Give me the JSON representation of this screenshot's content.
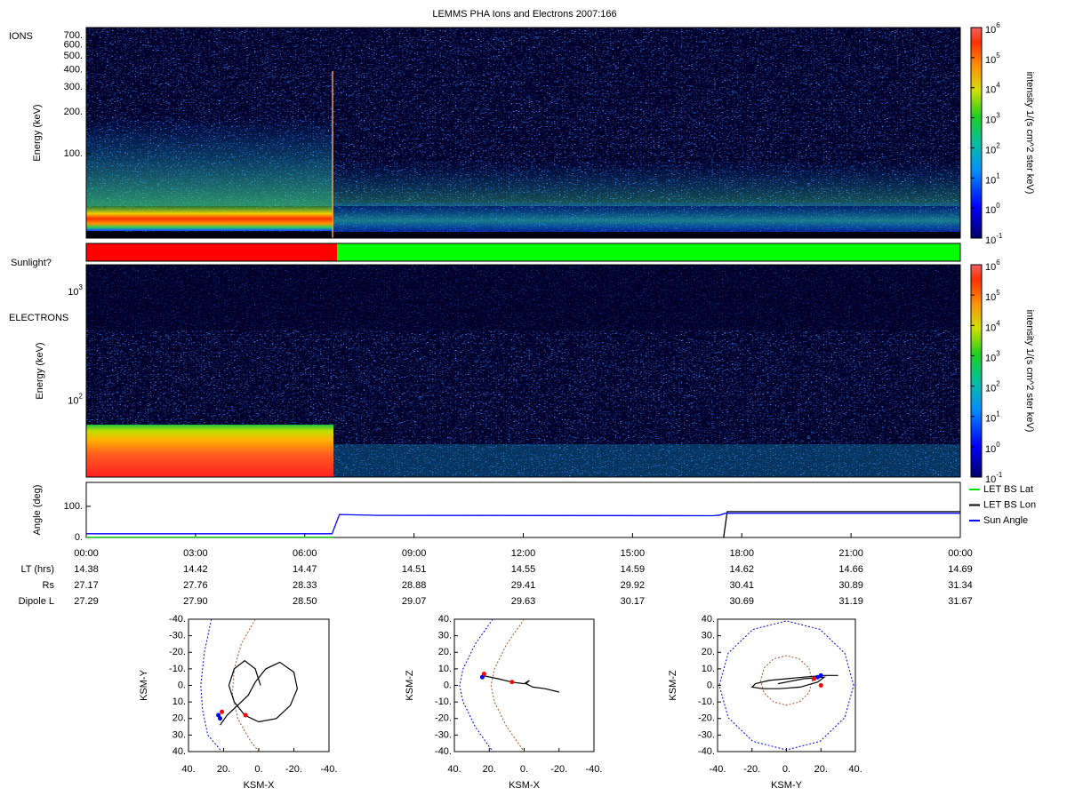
{
  "title": "LEMMS PHA Ions and Electrons  2007:166",
  "chart_data": [
    {
      "type": "spectrogram",
      "panel_label": "IONS",
      "ylabel": "Energy (keV)",
      "log_y": true,
      "ylim": [
        25,
        800
      ],
      "yticks": [
        {
          "value": 100,
          "label": "100."
        },
        {
          "value": 200,
          "label": "200."
        },
        {
          "value": 300,
          "label": "300."
        },
        {
          "value": 400,
          "label": "400."
        },
        {
          "value": 500,
          "label": "500."
        },
        {
          "value": 600,
          "label": "600."
        },
        {
          "value": 700,
          "label": "700."
        }
      ],
      "colorbar": {
        "label": "intensity 1/(s cm^2 ster keV)",
        "log": true,
        "lim": [
          0.1,
          1000000
        ],
        "ticks": [
          {
            "value": 0.1,
            "label": "10",
            "sup": "-1"
          },
          {
            "value": 1,
            "label": "10",
            "sup": "0"
          },
          {
            "value": 10,
            "label": "10",
            "sup": "1"
          },
          {
            "value": 100,
            "label": "10",
            "sup": "2"
          },
          {
            "value": 1000,
            "label": "10",
            "sup": "3"
          },
          {
            "value": 10000,
            "label": "10",
            "sup": "4"
          },
          {
            "value": 100000,
            "label": "10",
            "sup": "5"
          },
          {
            "value": 1000000,
            "label": "10",
            "sup": "6"
          }
        ]
      }
    },
    {
      "type": "timeline",
      "label": "Sunlight?",
      "xlim": [
        0,
        24
      ],
      "segments": [
        {
          "start": 0,
          "end": 6.89,
          "color": "#ff0000"
        },
        {
          "start": 6.89,
          "end": 24,
          "color": "#00ff00"
        }
      ]
    },
    {
      "type": "spectrogram",
      "panel_label": "ELECTRONS",
      "ylabel": "Energy (keV)",
      "log_y": true,
      "ylim": [
        20,
        1800
      ],
      "yticks": [
        {
          "value": 100,
          "label": "10",
          "sup": "2"
        },
        {
          "value": 1000,
          "label": "10",
          "sup": "3"
        }
      ],
      "colorbar": {
        "label": "intensity 1/(s cm^2 ster keV)",
        "log": true,
        "lim": [
          0.1,
          1000000
        ],
        "ticks": [
          {
            "value": 0.1,
            "label": "10",
            "sup": "-1"
          },
          {
            "value": 1,
            "label": "10",
            "sup": "0"
          },
          {
            "value": 10,
            "label": "10",
            "sup": "1"
          },
          {
            "value": 100,
            "label": "10",
            "sup": "2"
          },
          {
            "value": 1000,
            "label": "10",
            "sup": "3"
          },
          {
            "value": 10000,
            "label": "10",
            "sup": "4"
          },
          {
            "value": 100000,
            "label": "10",
            "sup": "5"
          },
          {
            "value": 1000000,
            "label": "10",
            "sup": "6"
          }
        ]
      }
    },
    {
      "type": "line",
      "ylabel": "Angle (deg)",
      "xlim": [
        0,
        24
      ],
      "ylim": [
        0,
        177
      ],
      "legend": "right",
      "yticks": [
        {
          "value": 0,
          "label": "0."
        },
        {
          "value": 100,
          "label": "100."
        }
      ],
      "xticks": [
        {
          "value": 0,
          "label": "00:00"
        },
        {
          "value": 3,
          "label": "03:00"
        },
        {
          "value": 6,
          "label": "06:00"
        },
        {
          "value": 9,
          "label": "09:00"
        },
        {
          "value": 12,
          "label": "12:00"
        },
        {
          "value": 15,
          "label": "15:00"
        },
        {
          "value": 18,
          "label": "18:00"
        },
        {
          "value": 21,
          "label": "21:00"
        },
        {
          "value": 24,
          "label": "00:00"
        }
      ],
      "series": [
        {
          "name": "LET BS Lat",
          "color": "#00e000",
          "x": [
            0,
            6.8
          ],
          "values": [
            1,
            1
          ]
        },
        {
          "name": "LET BS Lon",
          "color": "#000000",
          "x": [
            17.5,
            17.6,
            24
          ],
          "values": [
            0,
            83,
            83
          ]
        },
        {
          "name": "Sun Angle",
          "color": "#0000ff",
          "x": [
            0,
            6.75,
            6.95,
            8,
            17.2,
            17.4,
            17.55,
            24
          ],
          "values": [
            12,
            12,
            74,
            71,
            70,
            72,
            78,
            78
          ]
        }
      ]
    },
    {
      "type": "orbit",
      "xlabel": "KSM-X",
      "ylabel": "KSM-Y",
      "xlim": [
        40,
        -40
      ],
      "ylim": [
        40,
        -40
      ],
      "xticks": [
        {
          "value": 40,
          "label": "40."
        },
        {
          "value": 20,
          "label": "20."
        },
        {
          "value": 0,
          "label": "0."
        },
        {
          "value": -20,
          "label": "-20."
        },
        {
          "value": -40,
          "label": "-40."
        }
      ],
      "yticks": [
        {
          "value": -40,
          "label": "-40."
        },
        {
          "value": -30,
          "label": "-30."
        },
        {
          "value": -20,
          "label": "-20."
        },
        {
          "value": -10,
          "label": "-10."
        },
        {
          "value": 0,
          "label": "0."
        },
        {
          "value": 10,
          "label": "10."
        },
        {
          "value": 20,
          "label": "20."
        },
        {
          "value": 30,
          "label": "30."
        },
        {
          "value": 40,
          "label": "40."
        }
      ],
      "boundaries": [
        {
          "color": "#0000ff",
          "x": [
            27,
            31,
            33,
            32,
            29,
            21
          ],
          "y": [
            -40,
            -20,
            0,
            15,
            30,
            40
          ]
        },
        {
          "color": "#a0522d",
          "x": [
            2,
            10,
            14,
            15,
            12,
            5,
            0
          ],
          "y": [
            -40,
            -25,
            -10,
            5,
            20,
            33,
            40
          ]
        }
      ],
      "trajectory": {
        "color": "#000000",
        "x": [
          22,
          18,
          12,
          6,
          2,
          -4,
          -12,
          -20,
          -22,
          -18,
          -10,
          0,
          8,
          14,
          17,
          14,
          8,
          2,
          -1
        ],
        "y": [
          24,
          18,
          12,
          6,
          -2,
          -10,
          -14,
          -8,
          2,
          12,
          20,
          22,
          18,
          10,
          0,
          -10,
          -15,
          -10,
          0
        ]
      },
      "markers": [
        {
          "x": 22,
          "y": 20,
          "color": "#0000ff"
        },
        {
          "x": 23,
          "y": 18,
          "color": "#0000ff"
        },
        {
          "x": 21,
          "y": 16,
          "color": "#ff0000"
        },
        {
          "x": 7.5,
          "y": 18,
          "color": "#ff0000"
        }
      ]
    },
    {
      "type": "orbit",
      "xlabel": "KSM-X",
      "ylabel": "KSM-Z",
      "xlim": [
        40,
        -40
      ],
      "ylim": [
        -40,
        40
      ],
      "xticks": [
        {
          "value": 40,
          "label": "40."
        },
        {
          "value": 20,
          "label": "20."
        },
        {
          "value": 0,
          "label": "0."
        },
        {
          "value": -20,
          "label": "-20."
        },
        {
          "value": -40,
          "label": "-40."
        }
      ],
      "yticks": [
        {
          "value": 40,
          "label": "40."
        },
        {
          "value": 30,
          "label": "30."
        },
        {
          "value": 20,
          "label": "20."
        },
        {
          "value": 10,
          "label": "10."
        },
        {
          "value": 0,
          "label": "0."
        },
        {
          "value": -10,
          "label": "-10."
        },
        {
          "value": -20,
          "label": "-20."
        },
        {
          "value": -30,
          "label": "-30."
        },
        {
          "value": -40,
          "label": "-40."
        }
      ],
      "boundaries": [
        {
          "color": "#0000ff",
          "x": [
            18,
            28,
            35,
            37,
            35,
            28,
            18
          ],
          "y": [
            40,
            25,
            10,
            0,
            -10,
            -25,
            -40
          ]
        },
        {
          "color": "#a0522d",
          "x": [
            0,
            10,
            17,
            19,
            17,
            10,
            0
          ],
          "y": [
            40,
            25,
            10,
            0,
            -10,
            -25,
            -40
          ]
        }
      ],
      "trajectory": {
        "color": "#000000",
        "x": [
          24,
          15,
          7,
          0,
          -3,
          -1,
          -5,
          -12,
          -20
        ],
        "y": [
          6,
          4,
          2,
          1,
          3,
          1,
          -1,
          -2,
          -4
        ]
      },
      "markers": [
        {
          "x": 24,
          "y": 5,
          "color": "#0000ff"
        },
        {
          "x": 23,
          "y": 7,
          "color": "#ff0000"
        },
        {
          "x": 7,
          "y": 2,
          "color": "#ff0000"
        }
      ]
    },
    {
      "type": "orbit",
      "xlabel": "KSM-Y",
      "ylabel": "KSM-Z",
      "xlim": [
        -40,
        40
      ],
      "ylim": [
        -40,
        40
      ],
      "xticks": [
        {
          "value": -40,
          "label": "-40."
        },
        {
          "value": -20,
          "label": "-20."
        },
        {
          "value": 0,
          "label": "0."
        },
        {
          "value": 20,
          "label": "20."
        },
        {
          "value": 40,
          "label": "40."
        }
      ],
      "yticks": [
        {
          "value": 40,
          "label": "40."
        },
        {
          "value": 30,
          "label": "30."
        },
        {
          "value": 20,
          "label": "20."
        },
        {
          "value": 10,
          "label": "10."
        },
        {
          "value": 0,
          "label": "0."
        },
        {
          "value": -10,
          "label": "-10."
        },
        {
          "value": -20,
          "label": "-20."
        },
        {
          "value": -30,
          "label": "-30."
        },
        {
          "value": -40,
          "label": "-40."
        }
      ],
      "boundaries": [
        {
          "color": "#0000ff",
          "x": [
            39,
            33.8,
            19.5,
            0,
            -19.5,
            -33.8,
            -39,
            -33.8,
            -19.5,
            0,
            19.5,
            33.8,
            39
          ],
          "y": [
            0,
            19.5,
            33.8,
            39,
            33.8,
            19.5,
            0,
            -19.5,
            -33.8,
            -39,
            -33.8,
            -19.5,
            0
          ]
        },
        {
          "color": "#a0522d",
          "x": [
            15,
            13,
            7.5,
            0,
            -7.5,
            -13,
            -15,
            -13,
            -7.5,
            0,
            7.5,
            13,
            15
          ],
          "y": [
            3,
            10.5,
            16,
            18,
            16,
            10.5,
            3,
            -4.5,
            -10,
            -12,
            -10,
            -4.5,
            3
          ]
        }
      ],
      "trajectory": {
        "color": "#000000",
        "x": [
          30,
          22,
          10,
          0,
          -10,
          -18,
          -20,
          -14,
          -4,
          8,
          18,
          22,
          10,
          -5
        ],
        "y": [
          6,
          6,
          5,
          4,
          3,
          1,
          -1,
          -2,
          -2,
          -1,
          2,
          5,
          4,
          1
        ]
      },
      "markers": [
        {
          "x": 18,
          "y": 5,
          "color": "#0000ff"
        },
        {
          "x": 20,
          "y": 6,
          "color": "#0000ff"
        },
        {
          "x": 16,
          "y": 4,
          "color": "#ff0000"
        },
        {
          "x": 20,
          "y": 0,
          "color": "#ff0000"
        }
      ]
    }
  ],
  "ephemeris": {
    "rows": [
      {
        "label": "LT (hrs)",
        "values": [
          "14.38",
          "14.42",
          "14.47",
          "14.51",
          "14.55",
          "14.59",
          "14.62",
          "14.66",
          "14.69"
        ]
      },
      {
        "label": "Rs",
        "values": [
          "27.17",
          "27.76",
          "28.33",
          "28.88",
          "29.41",
          "29.92",
          "30.41",
          "30.89",
          "31.34"
        ]
      },
      {
        "label": "Dipole L",
        "values": [
          "27.29",
          "27.90",
          "28.50",
          "29.07",
          "29.63",
          "30.17",
          "30.69",
          "31.19",
          "31.67"
        ]
      }
    ]
  }
}
